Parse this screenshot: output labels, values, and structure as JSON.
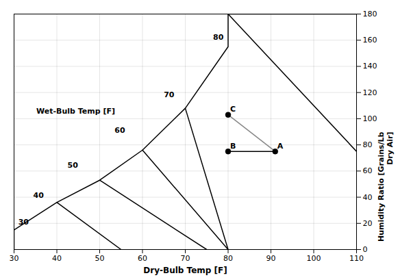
{
  "chart_data": {
    "type": "line",
    "xlabel": "Dry-Bulb Temp [F]",
    "ylabel": "Humidity Ratio [Grains/Lb\nDry Air]",
    "xlim": [
      30,
      110
    ],
    "xticks": [
      30,
      40,
      50,
      60,
      70,
      80,
      90,
      100,
      110
    ],
    "ylim": [
      0,
      180
    ],
    "yticks": [
      0,
      20,
      40,
      60,
      80,
      100,
      120,
      140,
      160,
      180
    ],
    "grid": true,
    "series": [
      {
        "x": [
          30,
          30
        ],
        "values": [
          15,
          0
        ],
        "color": "#000000"
      },
      {
        "x": [
          40,
          55
        ],
        "values": [
          36,
          0
        ],
        "color": "#000000"
      },
      {
        "x": [
          50,
          75
        ],
        "values": [
          53,
          0
        ],
        "color": "#000000"
      },
      {
        "x": [
          60,
          80
        ],
        "values": [
          76,
          0
        ],
        "color": "#000000"
      },
      {
        "x": [
          70,
          80
        ],
        "values": [
          108,
          0
        ],
        "color": "#000000"
      },
      {
        "x": [
          80,
          110
        ],
        "values": [
          180,
          75
        ],
        "color": "#000000"
      },
      {
        "x": [
          30,
          40,
          50,
          60,
          70,
          80,
          80
        ],
        "values": [
          15,
          36,
          53,
          76,
          108,
          155,
          180
        ],
        "color": "#000000"
      },
      {
        "x": [
          80,
          110
        ],
        "values": [
          180,
          180
        ],
        "color": "#000000"
      },
      {
        "x": [
          91,
          80
        ],
        "values": [
          75,
          103
        ],
        "color": "#888888"
      },
      {
        "x": [
          91,
          80
        ],
        "values": [
          75,
          75
        ],
        "color": "#000000"
      },
      {
        "type": "scatter",
        "marker": "circle",
        "x": [
          91,
          80,
          80
        ],
        "values": [
          75,
          75,
          103
        ],
        "color": "#000000"
      }
    ],
    "annotations": [
      {
        "text": "30",
        "x": 30.5,
        "y": 17
      },
      {
        "text": "40",
        "x": 34.0,
        "y": 37
      },
      {
        "text": "50",
        "x": 42.0,
        "y": 60
      },
      {
        "text": "60",
        "x": 53.0,
        "y": 87
      },
      {
        "text": "70",
        "x": 64.5,
        "y": 114
      },
      {
        "text": "80",
        "x": 76.0,
        "y": 158
      },
      {
        "text": "A",
        "x": 91,
        "y": 75
      },
      {
        "text": "B",
        "x": 80,
        "y": 75
      },
      {
        "text": "C",
        "x": 80,
        "y": 103
      },
      {
        "text": "Wet-Bulb Temp [F]"
      }
    ]
  }
}
